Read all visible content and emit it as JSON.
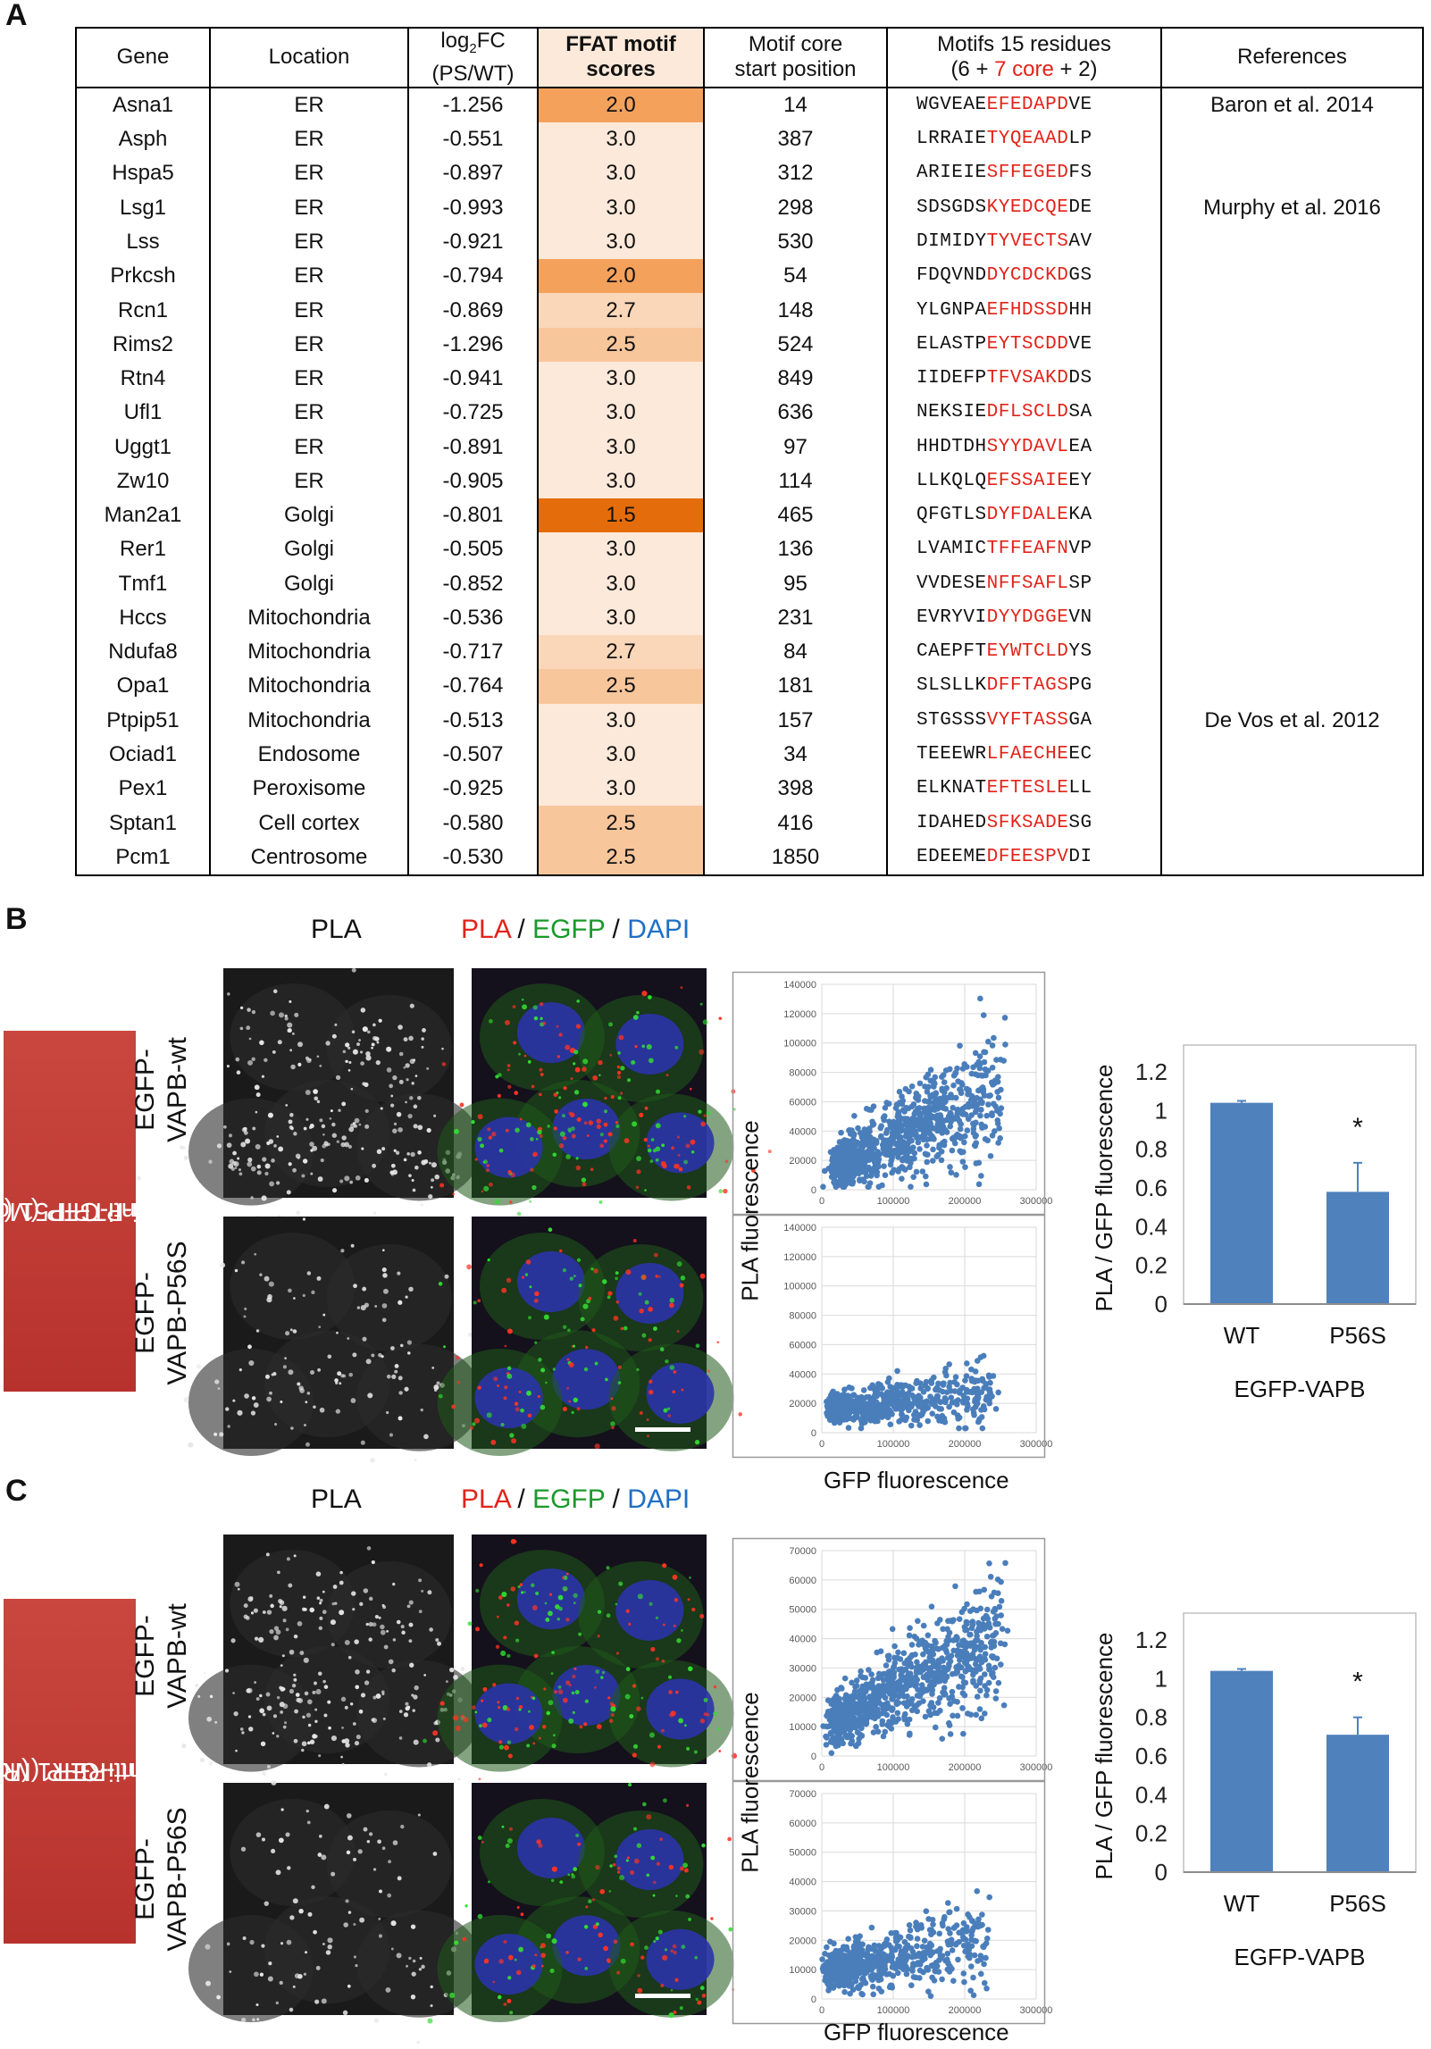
{
  "panels": {
    "a": "A",
    "b": "B",
    "c": "C"
  },
  "table": {
    "headers": {
      "gene": "Gene",
      "location": "Location",
      "log2fc_line1_pre": "log",
      "log2fc_line1_sub": "2",
      "log2fc_line1_post": "FC",
      "log2fc_line2": "(PS/WT)",
      "ffat_line1": "FFAT motif",
      "ffat_line2": "scores",
      "start_line1": "Motif core",
      "start_line2": "start position",
      "motif_line1": "Motifs 15 residues",
      "motif_line2_a": "(6 + ",
      "motif_line2_b": "7 core",
      "motif_line2_c": " + 2)",
      "references": "References"
    },
    "score_colors": {
      "1.5": "#e46c0a",
      "2.0": "#f4a15c",
      "2.5": "#f8c69b",
      "2.7": "#fbd7b9",
      "3.0": "#fde9d9"
    },
    "rows": [
      {
        "gene": "Asna1",
        "location": "ER",
        "fc": "-1.256",
        "score": "2.0",
        "start": "14",
        "pre": "WGVEAE",
        "core": "EFEDAPD",
        "post": "VE",
        "ref": "Baron et al. 2014"
      },
      {
        "gene": "Asph",
        "location": "ER",
        "fc": "-0.551",
        "score": "3.0",
        "start": "387",
        "pre": "LRRAIE",
        "core": "TYQEAAD",
        "post": "LP",
        "ref": ""
      },
      {
        "gene": "Hspa5",
        "location": "ER",
        "fc": "-0.897",
        "score": "3.0",
        "start": "312",
        "pre": "ARIEIE",
        "core": "SFFEGED",
        "post": "FS",
        "ref": ""
      },
      {
        "gene": "Lsg1",
        "location": "ER",
        "fc": "-0.993",
        "score": "3.0",
        "start": "298",
        "pre": "SDSGDS",
        "core": "KYEDCQE",
        "post": "DE",
        "ref": "Murphy et al. 2016"
      },
      {
        "gene": "Lss",
        "location": "ER",
        "fc": "-0.921",
        "score": "3.0",
        "start": "530",
        "pre": "DIMIDY",
        "core": "TYVECTS",
        "post": "AV",
        "ref": ""
      },
      {
        "gene": "Prkcsh",
        "location": "ER",
        "fc": "-0.794",
        "score": "2.0",
        "start": "54",
        "pre": "FDQVND",
        "core": "DYCDCKD",
        "post": "GS",
        "ref": ""
      },
      {
        "gene": "Rcn1",
        "location": "ER",
        "fc": "-0.869",
        "score": "2.7",
        "start": "148",
        "pre": "YLGNPA",
        "core": "EFHDSSD",
        "post": "HH",
        "ref": ""
      },
      {
        "gene": "Rims2",
        "location": "ER",
        "fc": "-1.296",
        "score": "2.5",
        "start": "524",
        "pre": "ELASTP",
        "core": "EYTSCDD",
        "post": "VE",
        "ref": ""
      },
      {
        "gene": "Rtn4",
        "location": "ER",
        "fc": "-0.941",
        "score": "3.0",
        "start": "849",
        "pre": "IIDEFP",
        "core": "TFVSAKD",
        "post": "DS",
        "ref": ""
      },
      {
        "gene": "Ufl1",
        "location": "ER",
        "fc": "-0.725",
        "score": "3.0",
        "start": "636",
        "pre": "NEKSIE",
        "core": "DFLSCLD",
        "post": "SA",
        "ref": ""
      },
      {
        "gene": "Uggt1",
        "location": "ER",
        "fc": "-0.891",
        "score": "3.0",
        "start": "97",
        "pre": "HHDTDH",
        "core": "SYYDAVL",
        "post": "EA",
        "ref": ""
      },
      {
        "gene": "Zw10",
        "location": "ER",
        "fc": "-0.905",
        "score": "3.0",
        "start": "114",
        "pre": "LLKQLQ",
        "core": "EFSSAIE",
        "post": "EY",
        "ref": ""
      },
      {
        "gene": "Man2a1",
        "location": "Golgi",
        "fc": "-0.801",
        "score": "1.5",
        "start": "465",
        "pre": "QFGTLS",
        "core": "DYFDALE",
        "post": "KA",
        "ref": ""
      },
      {
        "gene": "Rer1",
        "location": "Golgi",
        "fc": "-0.505",
        "score": "3.0",
        "start": "136",
        "pre": "LVAMIC",
        "core": "TFFEAFN",
        "post": "VP",
        "ref": ""
      },
      {
        "gene": "Tmf1",
        "location": "Golgi",
        "fc": "-0.852",
        "score": "3.0",
        "start": "95",
        "pre": "VVDESE",
        "core": "NFFSAFL",
        "post": "SP",
        "ref": ""
      },
      {
        "gene": "Hccs",
        "location": "Mitochondria",
        "fc": "-0.536",
        "score": "3.0",
        "start": "231",
        "pre": "EVRYVI",
        "core": "DYYDGGE",
        "post": "VN",
        "ref": ""
      },
      {
        "gene": "Ndufa8",
        "location": "Mitochondria",
        "fc": "-0.717",
        "score": "2.7",
        "start": "84",
        "pre": "CAEPFT",
        "core": "EYWTCLD",
        "post": "YS",
        "ref": ""
      },
      {
        "gene": "Opa1",
        "location": "Mitochondria",
        "fc": "-0.764",
        "score": "2.5",
        "start": "181",
        "pre": "SLSLLK",
        "core": "DFFTAGS",
        "post": "PG",
        "ref": ""
      },
      {
        "gene": "Ptpip51",
        "location": "Mitochondria",
        "fc": "-0.513",
        "score": "3.0",
        "start": "157",
        "pre": "STGSSS",
        "core": "VYFTASS",
        "post": "GA",
        "ref": "De Vos et al. 2012"
      },
      {
        "gene": "Ociad1",
        "location": "Endosome",
        "fc": "-0.507",
        "score": "3.0",
        "start": "34",
        "pre": "TEEEWR",
        "core": "LFAECHE",
        "post": "EC",
        "ref": ""
      },
      {
        "gene": "Pex1",
        "location": "Peroxisome",
        "fc": "-0.925",
        "score": "3.0",
        "start": "398",
        "pre": "ELKNAT",
        "core": "EFTESLE",
        "post": "LL",
        "ref": ""
      },
      {
        "gene": "Sptan1",
        "location": "Cell cortex",
        "fc": "-0.580",
        "score": "2.5",
        "start": "416",
        "pre": "IDAHED",
        "core": "SFKSADE",
        "post": "SG",
        "ref": ""
      },
      {
        "gene": "Pcm1",
        "location": "Centrosome",
        "fc": "-0.530",
        "score": "2.5",
        "start": "1850",
        "pre": "EDEEME",
        "core": "DFEESPV",
        "post": "DI",
        "ref": ""
      }
    ]
  },
  "panel_b": {
    "antibody_line1": "Anti-GFP (Mo)",
    "antibody_line2": "Anti-PTPIP51 (Rb)",
    "pla_label": "PLA",
    "merge": {
      "pla": "PLA",
      "sep1": " / ",
      "egfp": "EGFP",
      "sep2": " / ",
      "dapi": "DAPI"
    },
    "row1_line1": "EGFP-",
    "row1_line2": "VAPB-wt",
    "row2_line1": "EGFP-",
    "row2_line2": "VAPB-P56S",
    "scatter_ylabel": "PLA fluorescence",
    "scatter_xlabel": "GFP fluorescence"
  },
  "panel_c": {
    "antibody_line1": "Anti-GFP (Mo)",
    "antibody_line2": "Anti-RER1 (Rb)",
    "pla_label": "PLA",
    "merge": {
      "pla": "PLA",
      "sep1": " / ",
      "egfp": "EGFP",
      "sep2": " / ",
      "dapi": "DAPI"
    },
    "row1_line1": "EGFP-",
    "row1_line2": "VAPB-wt",
    "row2_line1": "EGFP-",
    "row2_line2": "VAPB-P56S",
    "scatter_ylabel": "PLA fluorescence",
    "scatter_xlabel": "GFP fluorescence"
  },
  "colors": {
    "pla": "#e2231a",
    "egfp": "#1a9a2a",
    "dapi": "#1f6fc5",
    "bar": "#4f81bd",
    "dot": "#4a7ebb",
    "antibody_bg": "#c0392b"
  },
  "chart_data": [
    {
      "type": "scatter",
      "id": "b-wt",
      "xlim": [
        0,
        300000
      ],
      "ylim": [
        0,
        140000
      ],
      "xticks": [
        0,
        100000,
        200000,
        300000
      ],
      "yticks": [
        0,
        20000,
        40000,
        60000,
        80000,
        100000,
        120000,
        140000
      ],
      "xlabel": "GFP fluorescence",
      "ylabel": "PLA fluorescence",
      "description_points": "dense cloud rising from ~(20000,15000) to ~(200000,60000)"
    },
    {
      "type": "scatter",
      "id": "b-p56s",
      "xlim": [
        0,
        300000
      ],
      "ylim": [
        0,
        140000
      ],
      "xticks": [
        0,
        100000,
        200000,
        300000
      ],
      "yticks": [
        0,
        20000,
        40000,
        60000,
        80000,
        100000,
        120000,
        140000
      ],
      "xlabel": "GFP fluorescence",
      "ylabel": "PLA fluorescence"
    },
    {
      "type": "bar",
      "id": "b-bar",
      "categories": [
        "WT",
        "P56S"
      ],
      "values": [
        1.04,
        0.58
      ],
      "errors": [
        0.01,
        0.15
      ],
      "significance": [
        "",
        "*"
      ],
      "ylim": [
        0,
        1.2
      ],
      "yticks": [
        "0",
        "0.2",
        "0.4",
        "0.6",
        "0.8",
        "1",
        "1.2"
      ],
      "xlabel": "EGFP-VAPB",
      "ylabel": "PLA / GFP fluorescence"
    },
    {
      "type": "scatter",
      "id": "c-wt",
      "xlim": [
        0,
        300000
      ],
      "ylim": [
        0,
        70000
      ],
      "xticks": [
        0,
        100000,
        200000,
        300000
      ],
      "yticks": [
        0,
        10000,
        20000,
        30000,
        40000,
        50000,
        60000,
        70000
      ],
      "xlabel": "GFP fluorescence",
      "ylabel": "PLA fluorescence"
    },
    {
      "type": "scatter",
      "id": "c-p56s",
      "xlim": [
        0,
        300000
      ],
      "ylim": [
        0,
        70000
      ],
      "xticks": [
        0,
        100000,
        200000,
        300000
      ],
      "yticks": [
        0,
        10000,
        20000,
        30000,
        40000,
        50000,
        60000,
        70000
      ],
      "xlabel": "GFP fluorescence",
      "ylabel": "PLA fluorescence"
    },
    {
      "type": "bar",
      "id": "c-bar",
      "categories": [
        "WT",
        "P56S"
      ],
      "values": [
        1.04,
        0.71
      ],
      "errors": [
        0.01,
        0.09
      ],
      "significance": [
        "",
        "*"
      ],
      "ylim": [
        0,
        1.2
      ],
      "yticks": [
        "0",
        "0.2",
        "0.4",
        "0.6",
        "0.8",
        "1",
        "1.2"
      ],
      "xlabel": "EGFP-VAPB",
      "ylabel": "PLA / GFP fluorescence"
    }
  ]
}
